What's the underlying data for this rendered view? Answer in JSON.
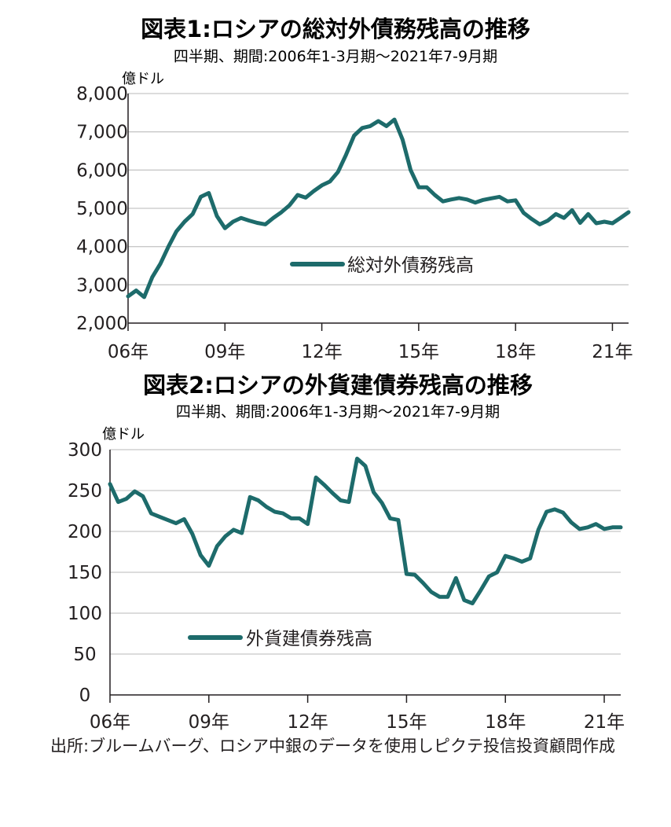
{
  "chart_data": [
    {
      "type": "line",
      "title": "図表1:ロシアの総対外債務残高の推移",
      "subtitle": "四半期、期間:2006年1-3月期～2021年7-9月期",
      "ylabel": "億ドル",
      "xlabel": "",
      "ylim": [
        2000,
        8000
      ],
      "yticks": [
        "8,000",
        "7,000",
        "6,000",
        "5,000",
        "4,000",
        "3,000",
        "2,000"
      ],
      "ytick_values": [
        8000,
        7000,
        6000,
        5000,
        4000,
        3000,
        2000
      ],
      "xticks": [
        "06年",
        "09年",
        "12年",
        "15年",
        "18年",
        "21年"
      ],
      "xtick_index": [
        0,
        12,
        24,
        36,
        48,
        60
      ],
      "grid": true,
      "legend": "center",
      "color": "#1d6b6b",
      "series": [
        {
          "name": "総対外債務残高",
          "values": [
            2700,
            2850,
            2680,
            3200,
            3550,
            4000,
            4400,
            4650,
            4850,
            5300,
            5400,
            4800,
            4480,
            4650,
            4750,
            4680,
            4620,
            4580,
            4750,
            4900,
            5080,
            5350,
            5280,
            5450,
            5600,
            5700,
            5950,
            6400,
            6900,
            7100,
            7150,
            7280,
            7150,
            7320,
            6800,
            6000,
            5550,
            5550,
            5350,
            5180,
            5230,
            5270,
            5230,
            5150,
            5220,
            5260,
            5300,
            5180,
            5210,
            4880,
            4720,
            4580,
            4680,
            4850,
            4750,
            4950,
            4620,
            4850,
            4610,
            4650,
            4610,
            4750,
            4900
          ]
        }
      ]
    },
    {
      "type": "line",
      "title": "図表2:ロシアの外貨建債券残高の推移",
      "subtitle": "四半期、期間:2006年1-3月期～2021年7-9月期",
      "ylabel": "億ドル",
      "xlabel": "",
      "ylim": [
        0,
        300
      ],
      "yticks": [
        "300",
        "250",
        "200",
        "150",
        "100",
        "50",
        "0"
      ],
      "ytick_values": [
        300,
        250,
        200,
        150,
        100,
        50,
        0
      ],
      "xticks": [
        "06年",
        "09年",
        "12年",
        "15年",
        "18年",
        "21年"
      ],
      "xtick_index": [
        0,
        12,
        24,
        36,
        48,
        60
      ],
      "grid": true,
      "legend": "bottom-left",
      "color": "#1d6b6b",
      "series": [
        {
          "name": "外貨建債券残高",
          "values": [
            258,
            236,
            240,
            249,
            243,
            222,
            218,
            214,
            210,
            215,
            197,
            171,
            158,
            182,
            194,
            202,
            198,
            242,
            238,
            230,
            224,
            222,
            216,
            216,
            209,
            266,
            257,
            247,
            238,
            236,
            289,
            280,
            248,
            235,
            216,
            214,
            148,
            147,
            137,
            126,
            120,
            120,
            143,
            116,
            112,
            128,
            145,
            150,
            170,
            167,
            163,
            167,
            202,
            224,
            227,
            223,
            211,
            203,
            205,
            209,
            203,
            205,
            205
          ]
        }
      ]
    }
  ],
  "source": "出所:ブルームバーグ、ロシア中銀のデータを使用しピクテ投信投資顧問作成"
}
